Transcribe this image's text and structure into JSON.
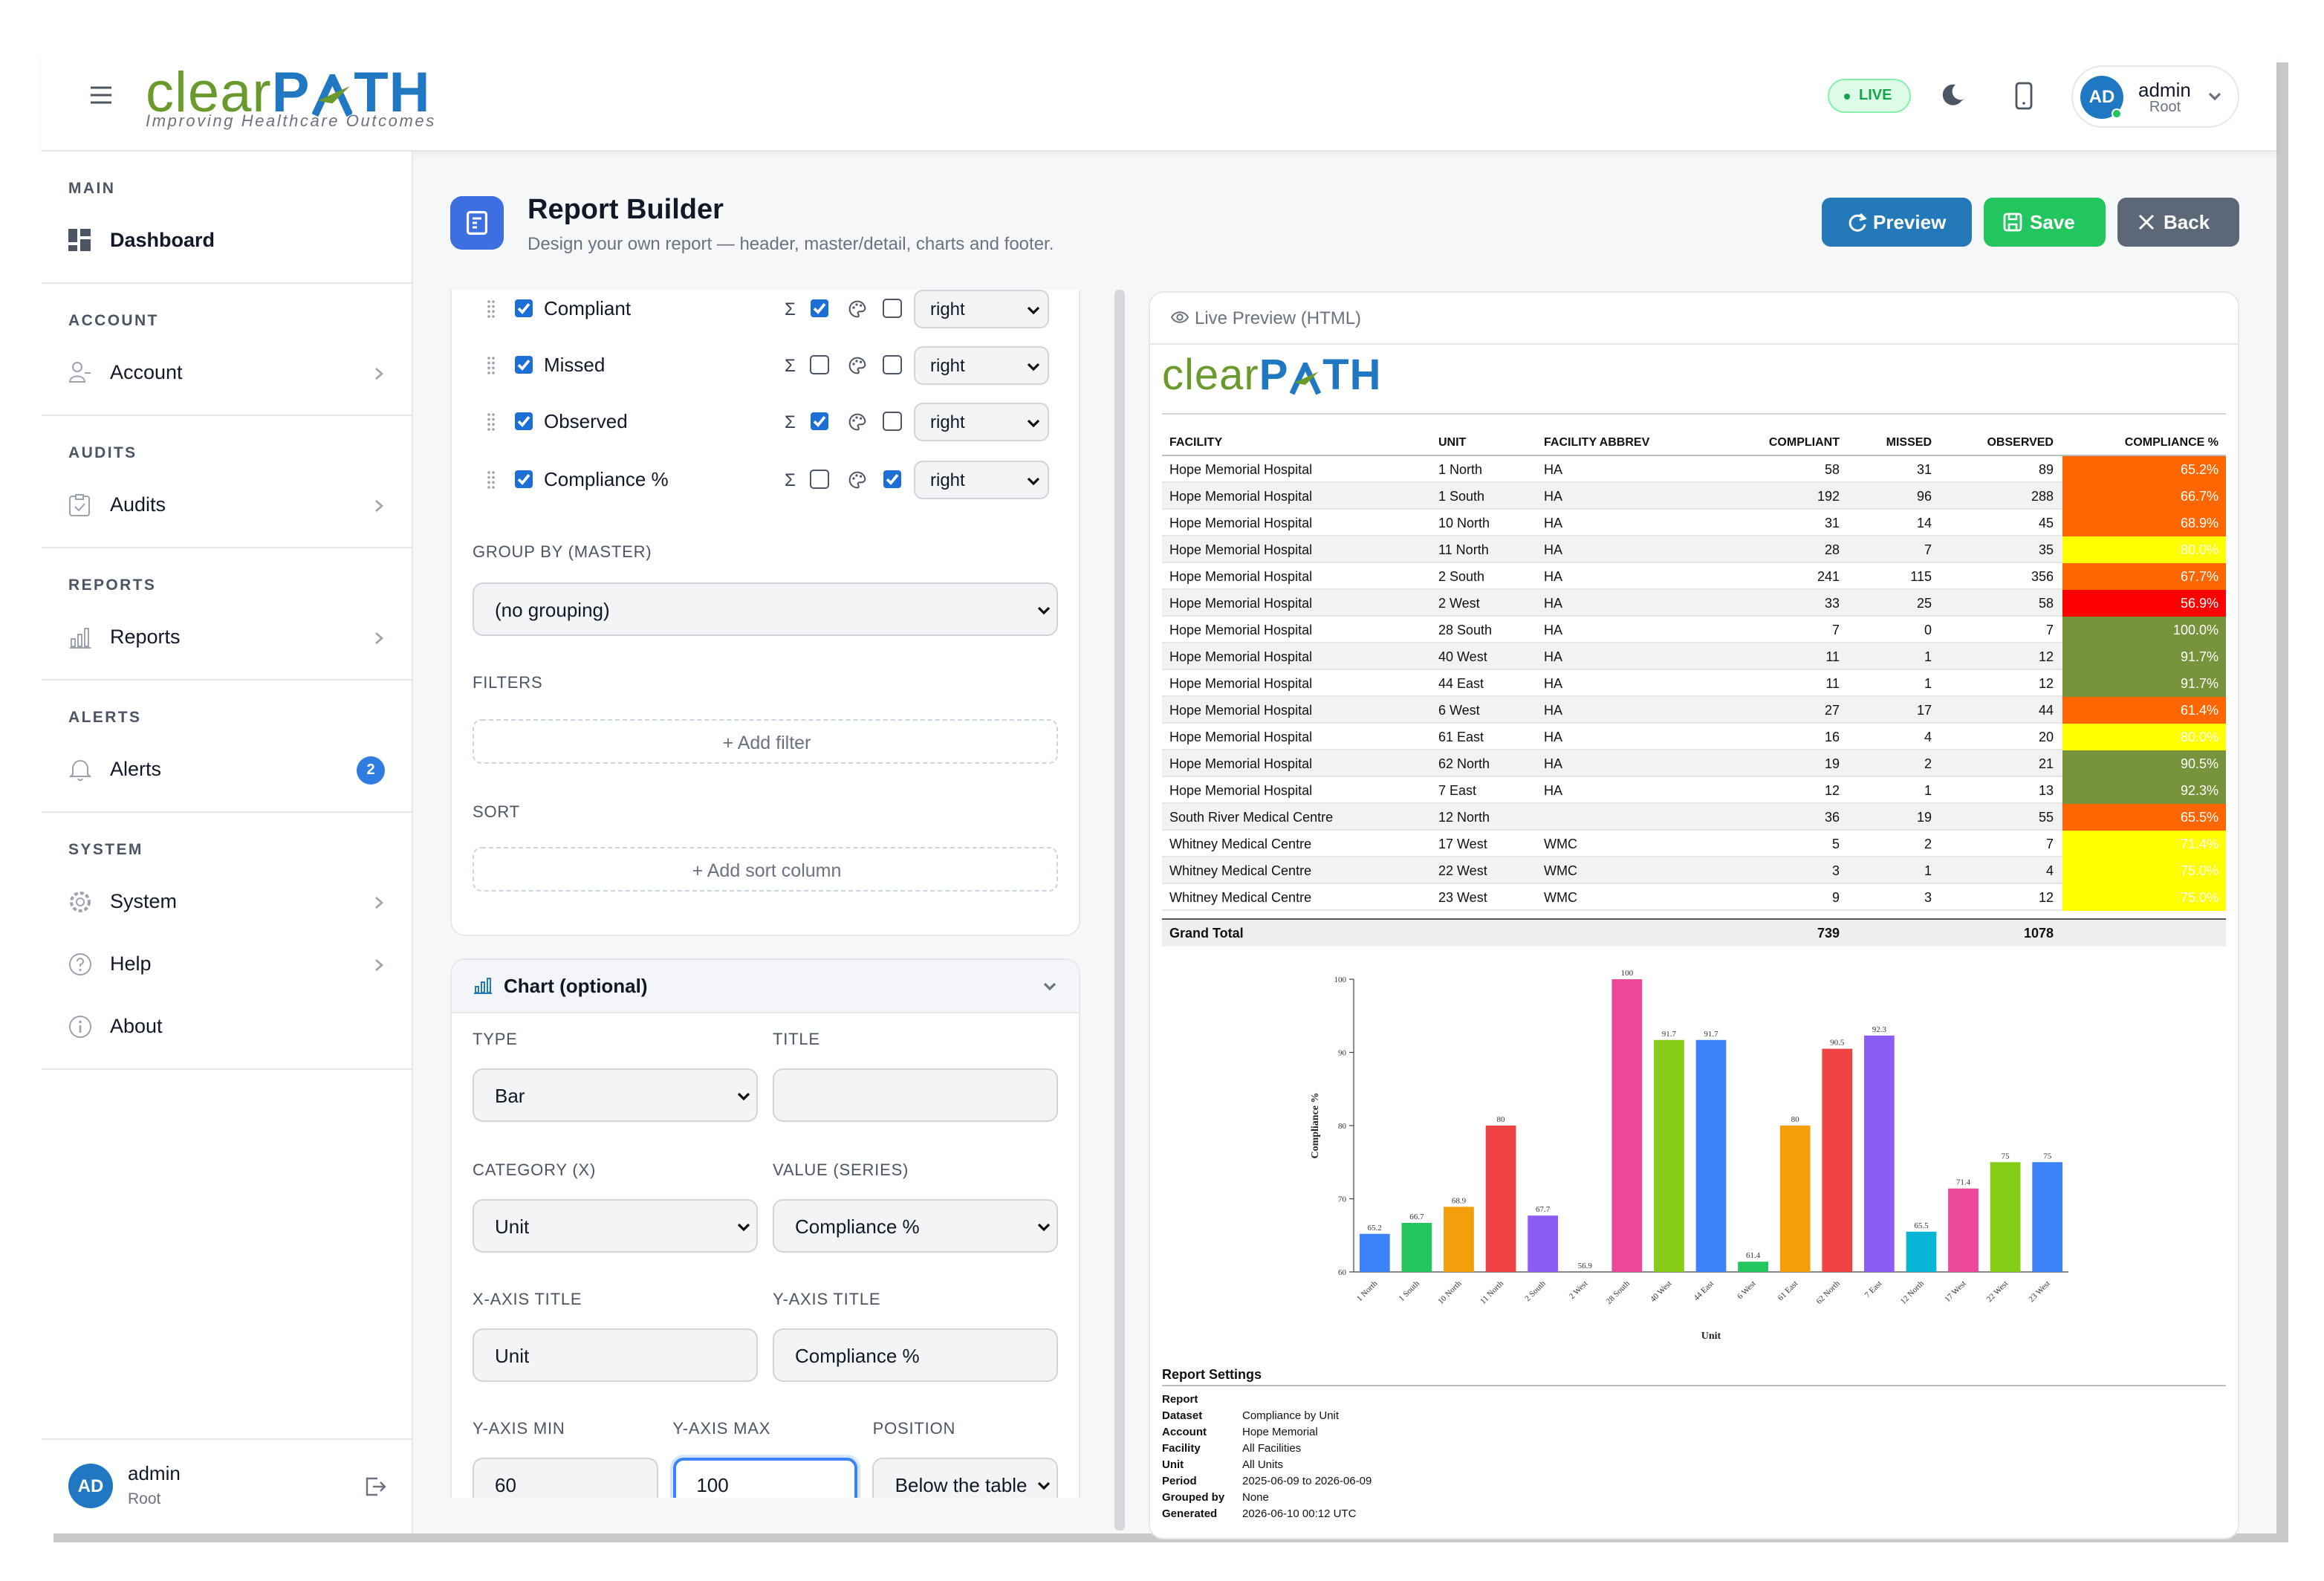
{
  "header": {
    "brand": {
      "a": "clear",
      "b": "P",
      "c": "TH"
    },
    "tagline": "Improving Healthcare Outcomes",
    "status": "LIVE",
    "user": {
      "initials": "AD",
      "name": "admin",
      "role": "Root"
    }
  },
  "sidebar": {
    "sections": [
      {
        "title": "MAIN",
        "items": [
          {
            "label": "Dashboard"
          }
        ]
      },
      {
        "title": "ACCOUNT",
        "items": [
          {
            "label": "Account",
            "arrow": true
          }
        ]
      },
      {
        "title": "AUDITS",
        "items": [
          {
            "label": "Audits",
            "arrow": true
          }
        ]
      },
      {
        "title": "REPORTS",
        "items": [
          {
            "label": "Reports",
            "arrow": true
          }
        ]
      },
      {
        "title": "ALERTS",
        "items": [
          {
            "label": "Alerts",
            "badge": 2
          }
        ]
      },
      {
        "title": "SYSTEM",
        "items": [
          {
            "label": "System",
            "arrow": true
          },
          {
            "label": "Help",
            "arrow": true
          },
          {
            "label": "About"
          }
        ]
      }
    ],
    "user": {
      "initials": "AD",
      "name": "admin",
      "role": "Root"
    }
  },
  "page": {
    "title": "Report Builder",
    "subtitle": "Design your own report — header, master/detail, charts and footer.",
    "buttons": [
      "Preview",
      "Save",
      "Back"
    ]
  },
  "builder": {
    "sum_symbol": "Σ",
    "columns": [
      {
        "label": "Compliant",
        "visible": true,
        "sum": true,
        "color": false,
        "align": "right"
      },
      {
        "label": "Missed",
        "visible": true,
        "sum": false,
        "color": false,
        "align": "right"
      },
      {
        "label": "Observed",
        "visible": true,
        "sum": true,
        "color": false,
        "align": "right"
      },
      {
        "label": "Compliance %",
        "visible": true,
        "sum": false,
        "color": true,
        "align": "right"
      }
    ],
    "group_by": {
      "label": "GROUP BY (MASTER)",
      "value": "(no grouping)"
    },
    "filters": {
      "label": "FILTERS",
      "button": "+ Add filter"
    },
    "sort": {
      "label": "SORT",
      "button": "+ Add sort column"
    }
  },
  "chart_panel": {
    "title": "Chart (optional)",
    "rows": [
      [
        {
          "label": "TYPE",
          "value": "Bar",
          "dropdown": true
        },
        {
          "label": "TITLE",
          "value": null
        }
      ],
      [
        {
          "label": "CATEGORY (X)",
          "value": "Unit",
          "dropdown": true
        },
        {
          "label": "VALUE (SERIES)",
          "value": "Compliance %",
          "dropdown": true
        }
      ],
      [
        {
          "label": "X-AXIS TITLE",
          "value": "Unit"
        },
        {
          "label": "Y-AXIS TITLE",
          "value": "Compliance %"
        }
      ],
      [
        {
          "label": "Y-AXIS MIN",
          "value": "60"
        },
        {
          "label": "Y-AXIS MAX",
          "value": "100",
          "focused": true
        },
        {
          "label": "POSITION",
          "value": "Below the table",
          "dropdown": true
        }
      ]
    ]
  },
  "preview": {
    "title": "Live Preview (HTML)",
    "table": {
      "headers": [
        "FACILITY",
        "UNIT",
        "FACILITY ABBREV",
        "COMPLIANT",
        "MISSED",
        "OBSERVED",
        "COMPLIANCE %"
      ],
      "rows": [
        [
          "Hope Memorial Hospital",
          "1 North",
          "HA",
          58,
          31,
          89,
          "65.2%"
        ],
        [
          "Hope Memorial Hospital",
          "1 South",
          "HA",
          192,
          96,
          288,
          "66.7%"
        ],
        [
          "Hope Memorial Hospital",
          "10 North",
          "HA",
          31,
          14,
          45,
          "68.9%"
        ],
        [
          "Hope Memorial Hospital",
          "11 North",
          "HA",
          28,
          7,
          35,
          "80.0%"
        ],
        [
          "Hope Memorial Hospital",
          "2 South",
          "HA",
          241,
          115,
          356,
          "67.7%"
        ],
        [
          "Hope Memorial Hospital",
          "2 West",
          "HA",
          33,
          25,
          58,
          "56.9%"
        ],
        [
          "Hope Memorial Hospital",
          "28 South",
          "HA",
          7,
          0,
          7,
          "100.0%"
        ],
        [
          "Hope Memorial Hospital",
          "40 West",
          "HA",
          11,
          1,
          12,
          "91.7%"
        ],
        [
          "Hope Memorial Hospital",
          "44 East",
          "HA",
          11,
          1,
          12,
          "91.7%"
        ],
        [
          "Hope Memorial Hospital",
          "6 West",
          "HA",
          27,
          17,
          44,
          "61.4%"
        ],
        [
          "Hope Memorial Hospital",
          "61 East",
          "HA",
          16,
          4,
          20,
          "80.0%"
        ],
        [
          "Hope Memorial Hospital",
          "62 North",
          "HA",
          19,
          2,
          21,
          "90.5%"
        ],
        [
          "Hope Memorial Hospital",
          "7 East",
          "HA",
          12,
          1,
          13,
          "92.3%"
        ],
        [
          "South River Medical Centre",
          "12 North",
          null,
          36,
          19,
          55,
          "65.5%"
        ],
        [
          "Whitney Medical Centre",
          "17 West",
          "WMC",
          5,
          2,
          7,
          "71.4%"
        ],
        [
          "Whitney Medical Centre",
          "22 West",
          "WMC",
          3,
          1,
          4,
          "75.0%"
        ],
        [
          "Whitney Medical Centre",
          "23 West",
          "WMC",
          9,
          3,
          12,
          "75.0%"
        ]
      ],
      "cell_colors": [
        "#ff6600",
        "#ff6600",
        "#ff6600",
        "#ffff00",
        "#ff6600",
        "#ff0000",
        "#77933c",
        "#77933c",
        "#77933c",
        "#ff6600",
        "#ffff00",
        "#77933c",
        "#77933c",
        "#ff6600",
        "#ffff00",
        "#ffff00",
        "#ffff00"
      ],
      "total": [
        "Grand Total",
        null,
        null,
        739,
        null,
        1078,
        null
      ]
    },
    "settings": {
      "title": "Report Settings",
      "rows": [
        [
          "Report",
          null
        ],
        [
          "Dataset",
          "Compliance by Unit"
        ],
        [
          "Account",
          "Hope Memorial"
        ],
        [
          "Facility",
          "All Facilities"
        ],
        [
          "Unit",
          "All Units"
        ],
        [
          "Period",
          "2025-06-09 to 2026-06-09"
        ],
        [
          "Grouped by",
          "None"
        ],
        [
          "Generated",
          "2026-06-10 00:12 UTC"
        ]
      ]
    }
  },
  "chart_data": {
    "type": "bar",
    "x_label": "Unit",
    "y_label": "Compliance %",
    "categories": [
      "1 North",
      "1 South",
      "10 North",
      "11 North",
      "2 South",
      "2 West",
      "28 South",
      "40 West",
      "44 East",
      "6 West",
      "61 East",
      "62 North",
      "7 East",
      "12 North",
      "17 West",
      "22 West",
      "23 West"
    ],
    "values": [
      65.2,
      66.7,
      68.9,
      80,
      67.7,
      56.9,
      100,
      91.7,
      91.7,
      61.4,
      80,
      90.5,
      92.3,
      65.5,
      71.4,
      75,
      75
    ],
    "colors": [
      "#3b82f6",
      "#22c55e",
      "#f59e0b",
      "#ef4444",
      "#8b5cf6",
      "#06b6d4",
      "#ec4899",
      "#84cc16"
    ],
    "ylim": [
      60,
      100
    ],
    "yticks": [
      60,
      70,
      80,
      90,
      100
    ]
  }
}
